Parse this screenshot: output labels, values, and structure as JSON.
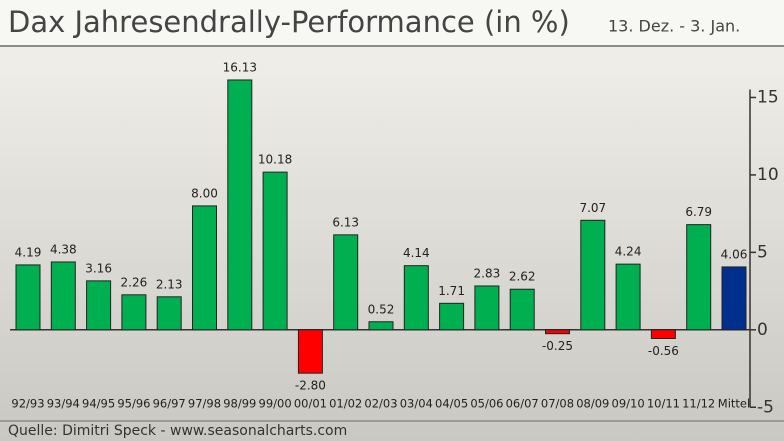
{
  "chart_data": {
    "type": "bar",
    "title": "Dax Jahresendrally-Performance (in %)",
    "subtitle": "13. Dez. - 3. Jan.",
    "source": "Quelle: Dimitri Speck - www.seasonalcharts.com",
    "categories": [
      "92/93",
      "93/94",
      "94/95",
      "95/96",
      "96/97",
      "97/98",
      "98/99",
      "99/00",
      "00/01",
      "01/02",
      "02/03",
      "03/04",
      "04/05",
      "05/06",
      "06/07",
      "07/08",
      "08/09",
      "09/10",
      "10/11",
      "11/12",
      "Mittel"
    ],
    "values": [
      4.19,
      4.38,
      3.16,
      2.26,
      2.13,
      8.0,
      16.13,
      10.18,
      -2.8,
      6.13,
      0.52,
      4.14,
      1.71,
      2.83,
      2.62,
      -0.25,
      7.07,
      4.24,
      -0.56,
      6.79,
      4.06
    ],
    "value_labels": [
      "4.19",
      "4.38",
      "3.16",
      "2.26",
      "2.13",
      "8.00",
      "16.13",
      "10.18",
      "-2.80",
      "6.13",
      "0.52",
      "4.14",
      "1.71",
      "2.83",
      "2.62",
      "-0.25",
      "7.07",
      "4.24",
      "-0.56",
      "6.79",
      "4.06"
    ],
    "colors": [
      "#00b050",
      "#00b050",
      "#00b050",
      "#00b050",
      "#00b050",
      "#00b050",
      "#00b050",
      "#00b050",
      "#ff0000",
      "#00b050",
      "#00b050",
      "#00b050",
      "#00b050",
      "#00b050",
      "#00b050",
      "#ff0000",
      "#00b050",
      "#00b050",
      "#ff0000",
      "#00b050",
      "#002f8e"
    ],
    "ylim": [
      -5.5,
      18
    ],
    "yticks": [
      -5,
      0,
      5,
      10,
      15
    ],
    "y_axis_side": "right"
  }
}
